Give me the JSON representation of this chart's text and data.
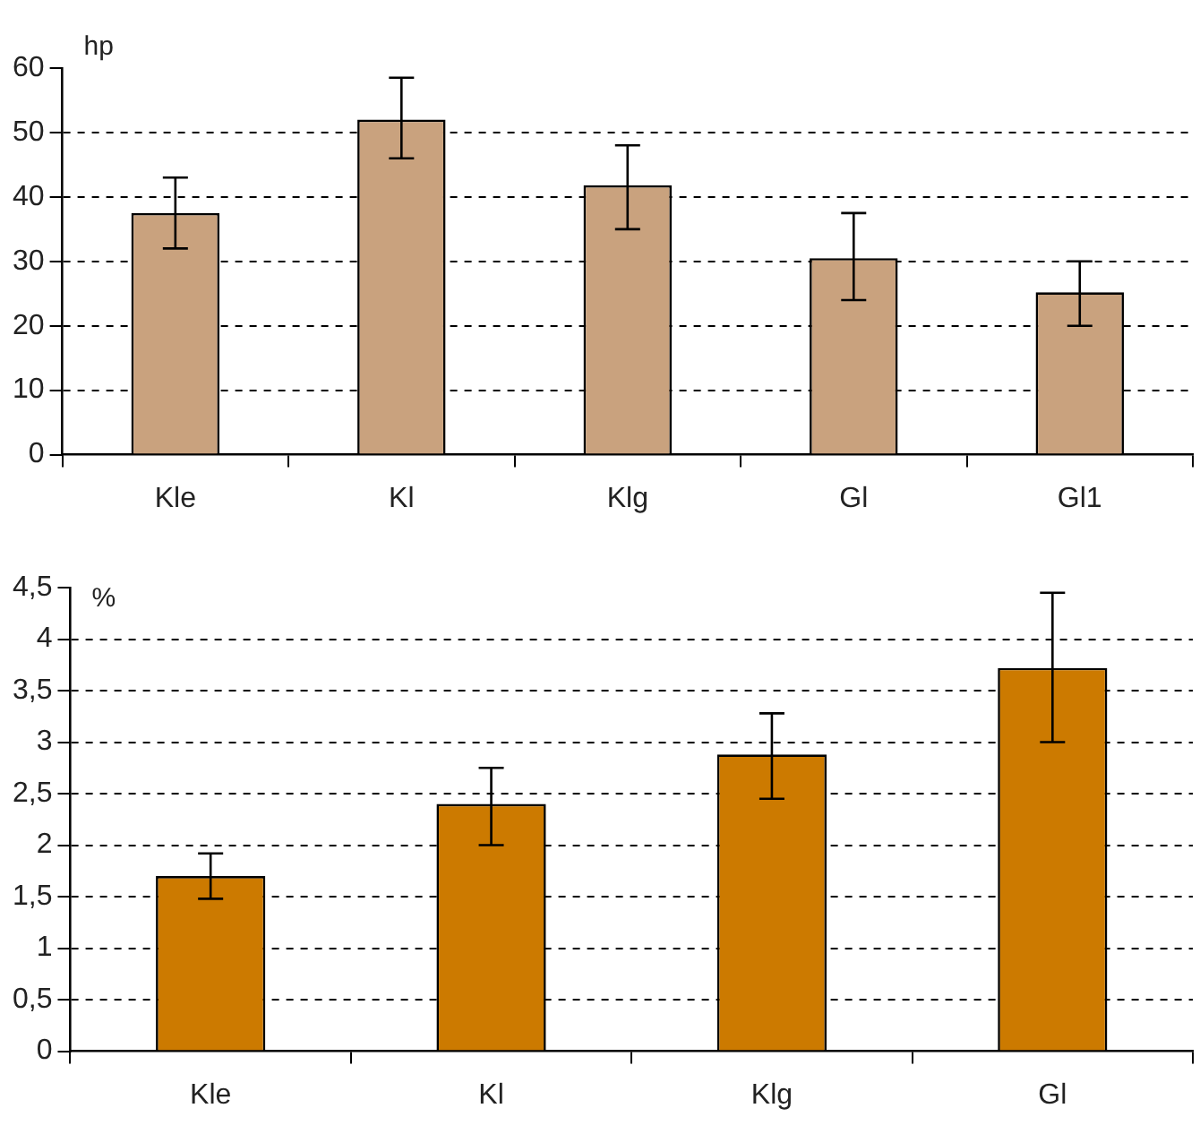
{
  "chart_data": [
    {
      "type": "bar",
      "ylabel": "hp",
      "categories": [
        "Kle",
        "Kl",
        "Klg",
        "Gl",
        "Gl1"
      ],
      "values": [
        37.5,
        52,
        41.8,
        30.5,
        25.2
      ],
      "errors": [
        [
          32,
          43
        ],
        [
          46,
          58.5
        ],
        [
          35,
          48
        ],
        [
          24,
          37.5
        ],
        [
          20,
          30
        ]
      ],
      "color": "#c9a27e",
      "ylim": [
        0,
        60
      ],
      "yticks": [
        0,
        10,
        20,
        30,
        40,
        50,
        60
      ],
      "grid": "y",
      "line_style": "dashed"
    },
    {
      "type": "bar",
      "ylabel": "%",
      "categories": [
        "Kle",
        "Kl",
        "Klg",
        "Gl"
      ],
      "values": [
        1.7,
        2.4,
        2.88,
        3.72
      ],
      "errors": [
        [
          1.48,
          1.92
        ],
        [
          2.0,
          2.75
        ],
        [
          2.45,
          3.28
        ],
        [
          3.0,
          4.45
        ]
      ],
      "color": "#cc7a00",
      "ylim": [
        0,
        4.5
      ],
      "yticks": [
        0,
        {
          "value": 0.5,
          "label": "0,5"
        },
        1,
        {
          "value": 1.5,
          "label": "1,5"
        },
        2,
        {
          "value": 2.5,
          "label": "2,5"
        },
        3,
        {
          "value": 3.5,
          "label": "3,5"
        },
        4,
        {
          "value": 4.5,
          "label": "4,5"
        }
      ],
      "grid": "y",
      "line_style": "dashed"
    }
  ]
}
